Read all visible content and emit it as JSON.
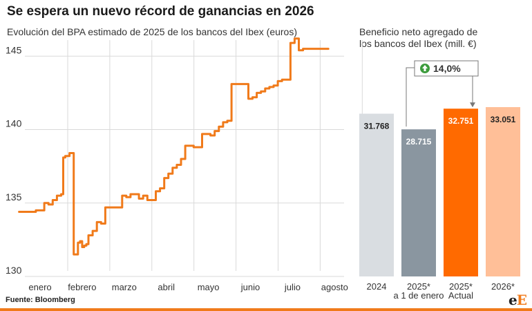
{
  "header": {
    "title": "Se espera un nuevo récord de ganancias en 2026",
    "subtitle_left": "Evolución del BPA estimado de 2025 de los bancos del Ibex (euros)",
    "subtitle_right_line1": "Beneficio neto agregado de",
    "subtitle_right_line2": "los bancos del Ibex (mill. €)"
  },
  "footer": {
    "source": "Fuente: Bloomberg",
    "logo_left": "e",
    "logo_right": "E"
  },
  "colors": {
    "line": "#f07a1a",
    "grid": "#d9d9d9",
    "bar_2024": "#d9dde1",
    "bar_2025_jan": "#8a96a0",
    "bar_2025_actual": "#ff6a00",
    "bar_2026": "#ffbf98",
    "badge_icon": "#3d9c3d"
  },
  "chart_data": [
    {
      "type": "line",
      "title": "Evolución del BPA estimado de 2025 de los bancos del Ibex (euros)",
      "ylim": [
        130,
        146
      ],
      "yticks": [
        "130",
        "135",
        "140",
        "145"
      ],
      "months": [
        "enero",
        "febrero",
        "marzo",
        "abril",
        "mayo",
        "junio",
        "julio",
        "agosto"
      ],
      "month_positions": [
        1,
        2,
        3,
        4,
        5,
        6,
        7,
        8
      ],
      "grid": true,
      "series": [
        {
          "x": [
            0.5,
            0.7,
            0.9,
            1.0,
            1.1,
            1.2,
            1.3,
            1.4,
            1.5,
            1.55,
            1.6,
            1.7,
            1.8,
            1.9,
            1.95,
            2.0,
            2.05,
            2.1,
            2.15,
            2.25,
            2.35,
            2.45,
            2.55,
            2.65,
            2.75,
            2.85,
            2.95,
            3.05,
            3.15,
            3.25,
            3.35,
            3.45,
            3.55,
            3.65,
            3.75,
            3.85,
            3.95,
            4.05,
            4.15,
            4.25,
            4.35,
            4.45,
            4.55,
            4.65,
            4.75,
            4.85,
            4.95,
            5.05,
            5.15,
            5.25,
            5.35,
            5.45,
            5.55,
            5.65,
            5.75,
            5.85,
            5.95,
            6.05,
            6.15,
            6.25,
            6.35,
            6.45,
            6.55,
            6.65,
            6.75,
            6.85,
            6.95,
            7.05,
            7.15,
            7.25,
            7.35,
            7.45,
            7.55,
            7.65,
            7.75,
            7.85
          ],
          "values": [
            134.4,
            134.4,
            134.5,
            134.5,
            135.0,
            134.9,
            135.2,
            135.5,
            135.6,
            138.1,
            138.2,
            138.4,
            131.5,
            132.3,
            132.4,
            132.0,
            132.1,
            132.2,
            132.8,
            133.1,
            133.7,
            133.6,
            134.7,
            134.7,
            134.7,
            134.7,
            135.5,
            135.4,
            135.6,
            135.6,
            135.3,
            135.5,
            135.2,
            135.2,
            135.8,
            136.0,
            136.7,
            137.0,
            137.4,
            137.6,
            138.0,
            138.9,
            138.9,
            138.8,
            138.8,
            139.7,
            139.7,
            139.6,
            139.9,
            140.2,
            140.5,
            140.6,
            143.1,
            143.1,
            143.1,
            143.1,
            142.1,
            142.2,
            142.5,
            142.6,
            142.8,
            142.9,
            143.0,
            143.3,
            143.4,
            143.4,
            145.9,
            146.2,
            145.4,
            145.5,
            145.5,
            145.5,
            145.5,
            145.5,
            145.5,
            145.5
          ]
        }
      ]
    },
    {
      "type": "bar",
      "title": "Beneficio neto agregado de los bancos del Ibex (mill. €)",
      "categories": [
        "2024",
        "2025*\na 1 de enero",
        "2025*\nActual",
        "2026*"
      ],
      "category_lines": [
        [
          "2024"
        ],
        [
          "2025*",
          "a 1 de enero"
        ],
        [
          "2025*",
          "Actual"
        ],
        [
          "2026*"
        ]
      ],
      "values": [
        31768,
        28715,
        32751,
        33051
      ],
      "value_labels": [
        "31.768",
        "28.715",
        "32.751",
        "33.051"
      ],
      "ylim": [
        0,
        33051
      ],
      "annotation": {
        "label": "14,0%",
        "from_index": 1,
        "to_index": 2
      }
    }
  ]
}
